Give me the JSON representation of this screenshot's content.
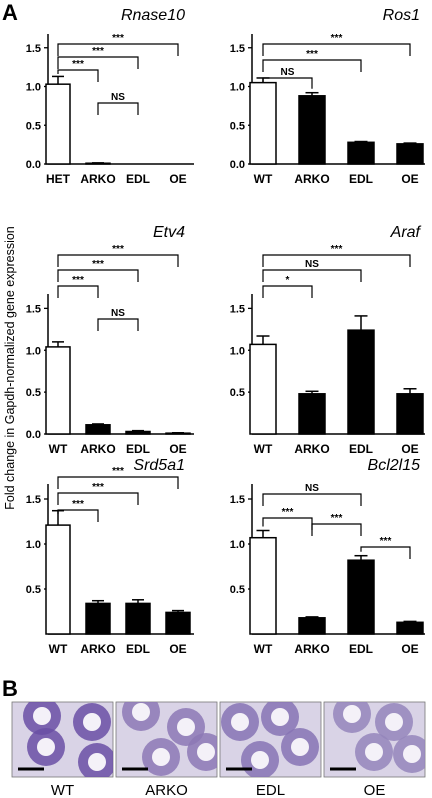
{
  "figure": {
    "panel_a_label": "A",
    "panel_b_label": "B",
    "shared_ylabel": "Fold change in Gapdh-normalized gene expression"
  },
  "chart_data": [
    {
      "type": "bar",
      "title": "Rnase10",
      "categories": [
        "HET",
        "ARKO",
        "EDL",
        "OE"
      ],
      "values": [
        1.03,
        0.01,
        0.0,
        0.0
      ],
      "errors": [
        0.1,
        0.005,
        0.0,
        0.0
      ],
      "fills": [
        "white",
        "black",
        "black",
        "black"
      ],
      "ylim": [
        0,
        1.6
      ],
      "yticks": [
        "0.0",
        "0.5",
        "1.0",
        "1.5"
      ],
      "brackets": [
        {
          "from": 0,
          "to": 1,
          "label": "***"
        },
        {
          "from": 0,
          "to": 2,
          "label": "***"
        },
        {
          "from": 0,
          "to": 3,
          "label": "***"
        },
        {
          "from": 1,
          "to": 2,
          "label": "NS"
        }
      ]
    },
    {
      "type": "bar",
      "title": "Ros1",
      "categories": [
        "WT",
        "ARKO",
        "EDL",
        "OE"
      ],
      "values": [
        1.05,
        0.88,
        0.28,
        0.26
      ],
      "errors": [
        0.06,
        0.04,
        0.01,
        0.01
      ],
      "fills": [
        "white",
        "black",
        "black",
        "black"
      ],
      "ylim": [
        0,
        1.6
      ],
      "yticks": [
        "0.0",
        "0.5",
        "1.0",
        "1.5"
      ],
      "brackets": [
        {
          "from": 0,
          "to": 1,
          "label": "NS"
        },
        {
          "from": 0,
          "to": 2,
          "label": "***"
        },
        {
          "from": 0,
          "to": 3,
          "label": "***"
        }
      ]
    },
    {
      "type": "bar",
      "title": "Etv4",
      "categories": [
        "WT",
        "ARKO",
        "EDL",
        "OE"
      ],
      "values": [
        1.04,
        0.11,
        0.03,
        0.01
      ],
      "errors": [
        0.06,
        0.01,
        0.01,
        0.005
      ],
      "fills": [
        "white",
        "black",
        "black",
        "black"
      ],
      "ylim": [
        0,
        1.6
      ],
      "yticks": [
        "0.0",
        "0.5",
        "1.0",
        "1.5"
      ],
      "brackets": [
        {
          "from": 0,
          "to": 1,
          "label": "***"
        },
        {
          "from": 0,
          "to": 2,
          "label": "***"
        },
        {
          "from": 0,
          "to": 3,
          "label": "***"
        },
        {
          "from": 1,
          "to": 2,
          "label": "NS"
        }
      ]
    },
    {
      "type": "bar",
      "title": "Araf",
      "categories": [
        "WT",
        "ARKO",
        "EDL",
        "OE"
      ],
      "values": [
        1.07,
        0.48,
        1.24,
        0.48
      ],
      "errors": [
        0.1,
        0.03,
        0.17,
        0.06
      ],
      "fills": [
        "white",
        "black",
        "black",
        "black"
      ],
      "ylim": [
        0,
        1.6
      ],
      "yticks": [
        "0.5",
        "1.0",
        "1.5"
      ],
      "brackets": [
        {
          "from": 0,
          "to": 1,
          "label": "*"
        },
        {
          "from": 0,
          "to": 2,
          "label": "NS"
        },
        {
          "from": 0,
          "to": 3,
          "label": "***"
        }
      ]
    },
    {
      "type": "bar",
      "title": "Srd5a1",
      "categories": [
        "WT",
        "ARKO",
        "EDL",
        "OE"
      ],
      "values": [
        1.21,
        0.34,
        0.34,
        0.24
      ],
      "errors": [
        0.16,
        0.03,
        0.04,
        0.02
      ],
      "fills": [
        "white",
        "black",
        "black",
        "black"
      ],
      "ylim": [
        0,
        1.6
      ],
      "yticks": [
        "0.5",
        "1.0",
        "1.5"
      ],
      "brackets": [
        {
          "from": 0,
          "to": 1,
          "label": "***"
        },
        {
          "from": 0,
          "to": 2,
          "label": "***"
        },
        {
          "from": 0,
          "to": 3,
          "label": "***"
        }
      ]
    },
    {
      "type": "bar",
      "title": "Bcl2l15",
      "categories": [
        "WT",
        "ARKO",
        "EDL",
        "OE"
      ],
      "values": [
        1.07,
        0.18,
        0.82,
        0.13
      ],
      "errors": [
        0.08,
        0.01,
        0.05,
        0.01
      ],
      "fills": [
        "white",
        "black",
        "black",
        "black"
      ],
      "ylim": [
        0,
        1.6
      ],
      "yticks": [
        "0.5",
        "1.0",
        "1.5"
      ],
      "brackets": [
        {
          "from": 0,
          "to": 2,
          "label": "NS"
        },
        {
          "from": 0,
          "to": 1,
          "label": "***"
        },
        {
          "from": 1,
          "to": 2,
          "label": "***"
        },
        {
          "from": 2,
          "to": 3,
          "label": "***"
        }
      ]
    }
  ],
  "histology": {
    "labels": [
      "WT",
      "ARKO",
      "EDL",
      "OE"
    ],
    "stain_colors": [
      "#6a4fa5",
      "#8c78b5",
      "#8673b4",
      "#9485bb"
    ],
    "background_color": "#d9d3e6"
  }
}
